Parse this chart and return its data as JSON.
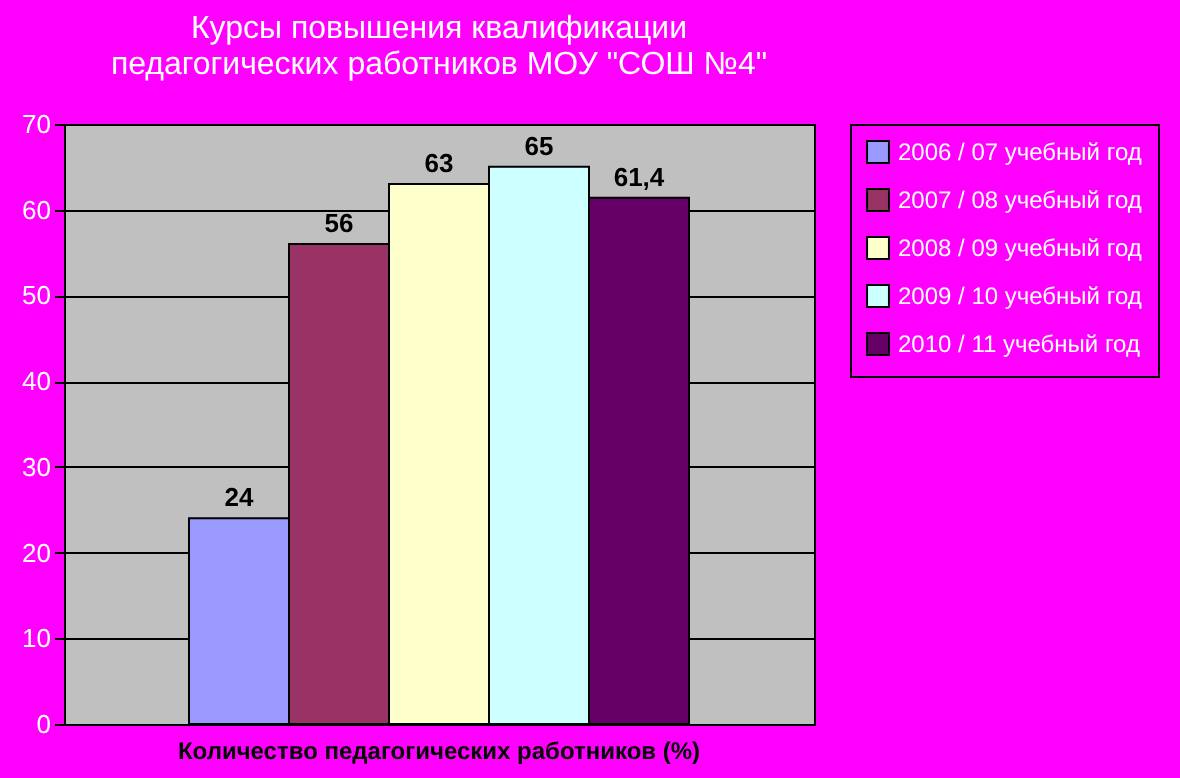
{
  "chart_data": {
    "type": "bar",
    "title": "Курсы повышения квалификации\nпедагогических работников МОУ \"СОШ №4\"",
    "categories": [
      "Количество педагогических работников (%)"
    ],
    "series": [
      {
        "name": "2006 / 07 учебный год",
        "color": "#9999ff",
        "values": [
          24
        ],
        "value_labels": [
          "24"
        ]
      },
      {
        "name": "2007 / 08 учебный год",
        "color": "#993366",
        "values": [
          56
        ],
        "value_labels": [
          "56"
        ]
      },
      {
        "name": "2008 / 09 учебный год",
        "color": "#ffffcc",
        "values": [
          63
        ],
        "value_labels": [
          "63"
        ]
      },
      {
        "name": "2009 / 10 учебный год",
        "color": "#ccffff",
        "values": [
          65
        ],
        "value_labels": [
          "65"
        ]
      },
      {
        "name": "2010 / 11 учебный год",
        "color": "#660066",
        "values": [
          61.4
        ],
        "value_labels": [
          "61,4"
        ]
      }
    ],
    "ylim": [
      0,
      70
    ],
    "yticks": [
      0,
      10,
      20,
      30,
      40,
      50,
      60,
      70
    ],
    "grid": "y",
    "legend": "right"
  }
}
